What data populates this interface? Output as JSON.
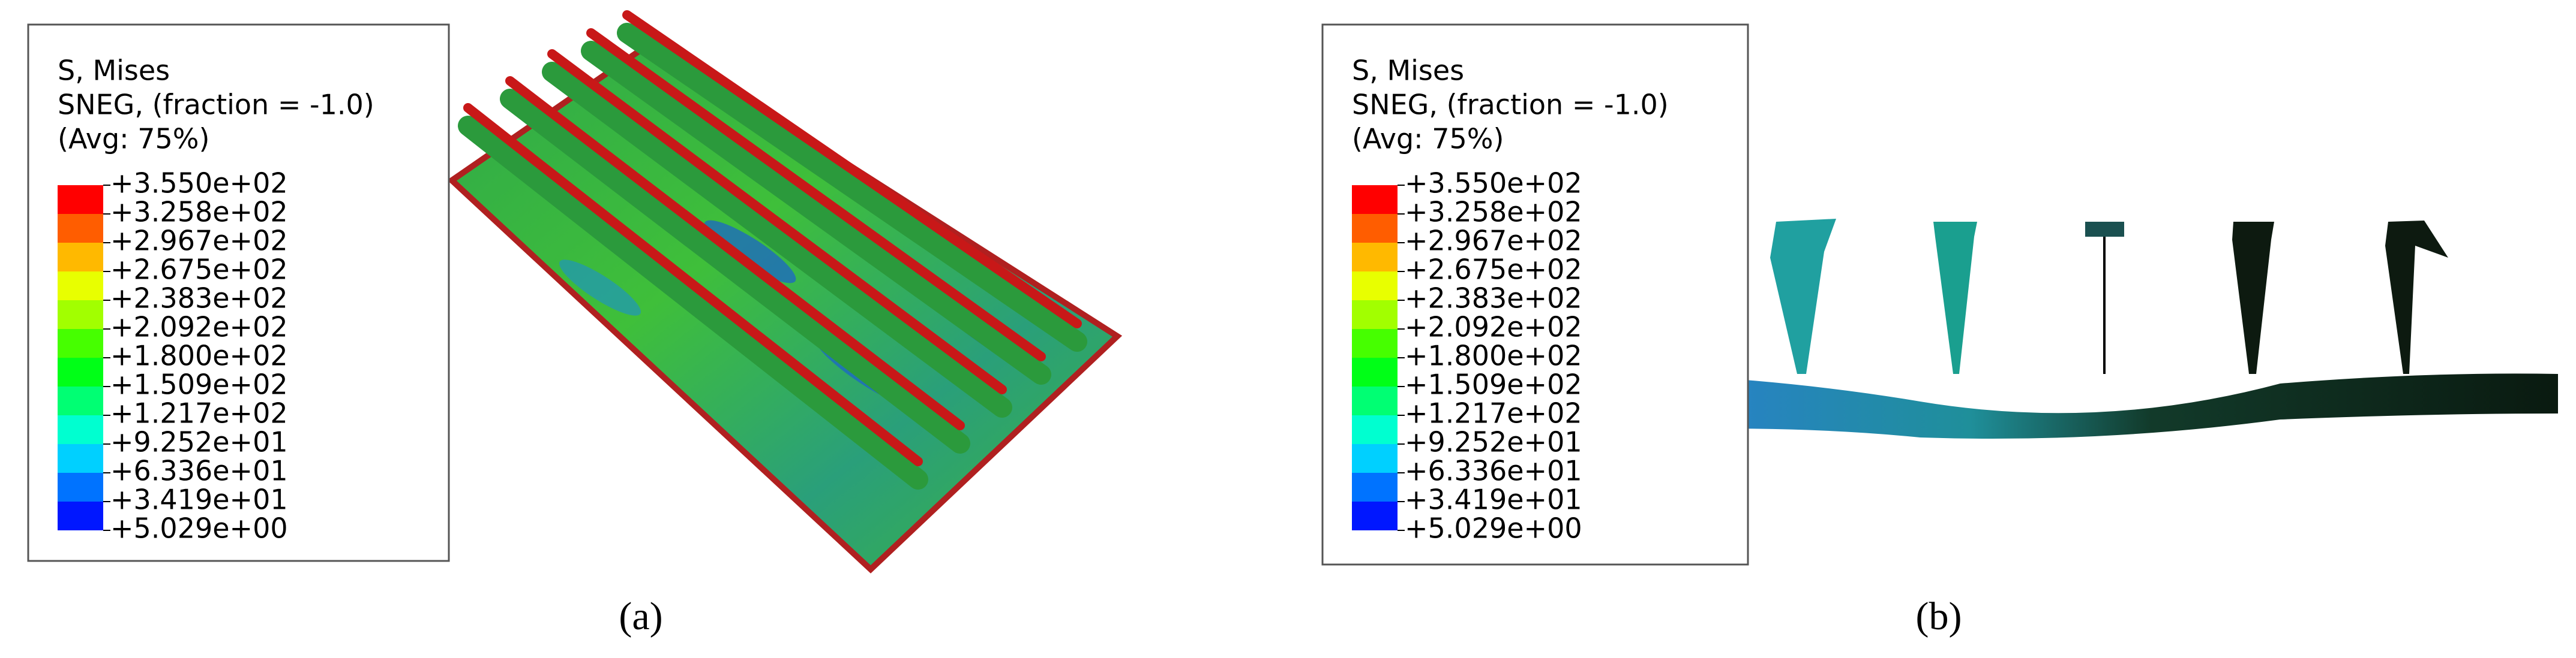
{
  "panels": [
    {
      "legend": {
        "title_lines": [
          "S, Mises",
          "SNEG, (fraction = -1.0)",
          "(Avg: 75%)"
        ],
        "labels": [
          "+3.550e+02",
          "+3.258e+02",
          "+2.967e+02",
          "+2.675e+02",
          "+2.383e+02",
          "+2.092e+02",
          "+1.800e+02",
          "+1.509e+02",
          "+1.217e+02",
          "+9.252e+01",
          "+6.336e+01",
          "+3.419e+01",
          "+5.029e+00"
        ],
        "colors": [
          "#ff0000",
          "#ff5d00",
          "#ffb900",
          "#e8ff00",
          "#a2ff00",
          "#46ff00",
          "#00ff17",
          "#00ff73",
          "#00ffd0",
          "#00d0ff",
          "#0073ff",
          "#0017ff"
        ]
      },
      "caption": "(a)"
    },
    {
      "legend": {
        "title_lines": [
          "S, Mises",
          "SNEG, (fraction = -1.0)",
          "(Avg: 75%)"
        ],
        "labels": [
          "+3.550e+02",
          "+3.258e+02",
          "+2.967e+02",
          "+2.675e+02",
          "+2.383e+02",
          "+2.092e+02",
          "+1.800e+02",
          "+1.509e+02",
          "+1.217e+02",
          "+9.252e+01",
          "+6.336e+01",
          "+3.419e+01",
          "+5.029e+00"
        ],
        "colors": [
          "#ff0000",
          "#ff5d00",
          "#ffb900",
          "#e8ff00",
          "#a2ff00",
          "#46ff00",
          "#00ff17",
          "#00ff73",
          "#00ffd0",
          "#00d0ff",
          "#0073ff",
          "#0017ff"
        ]
      },
      "caption": "(b)"
    }
  ]
}
